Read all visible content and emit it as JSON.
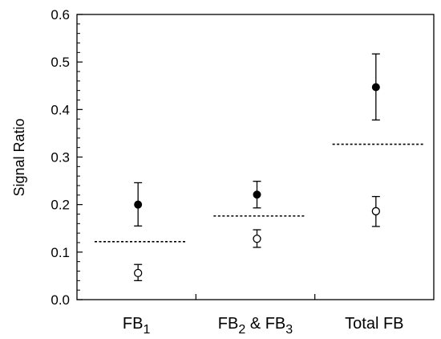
{
  "chart_data": {
    "type": "scatter",
    "title": "",
    "xlabel": "",
    "ylabel": "Signal Ratio",
    "ylim": [
      0,
      0.6
    ],
    "yticks": [
      "0.0",
      "0.1",
      "0.2",
      "0.3",
      "0.4",
      "0.5",
      "0.6"
    ],
    "categories": [
      {
        "base": "FB",
        "sub": "1",
        "mid": "",
        "sub2": "",
        "tail": ""
      },
      {
        "base": "FB",
        "sub": "2",
        "mid": " & FB",
        "sub2": "3",
        "tail": ""
      },
      {
        "base": "Total FB",
        "sub": "",
        "mid": "",
        "sub2": "",
        "tail": ""
      }
    ],
    "filled": [
      {
        "value": 0.2,
        "err_low": 0.155,
        "err_high": 0.246
      },
      {
        "value": 0.221,
        "err_low": 0.193,
        "err_high": 0.249
      },
      {
        "value": 0.447,
        "err_low": 0.378,
        "err_high": 0.517
      }
    ],
    "open": [
      {
        "value": 0.056,
        "err_low": 0.04,
        "err_high": 0.074
      },
      {
        "value": 0.128,
        "err_low": 0.11,
        "err_high": 0.147
      },
      {
        "value": 0.186,
        "err_low": 0.154,
        "err_high": 0.217
      }
    ],
    "threshold": [
      0.122,
      0.176,
      0.327
    ],
    "grid": false,
    "legend": "none"
  }
}
